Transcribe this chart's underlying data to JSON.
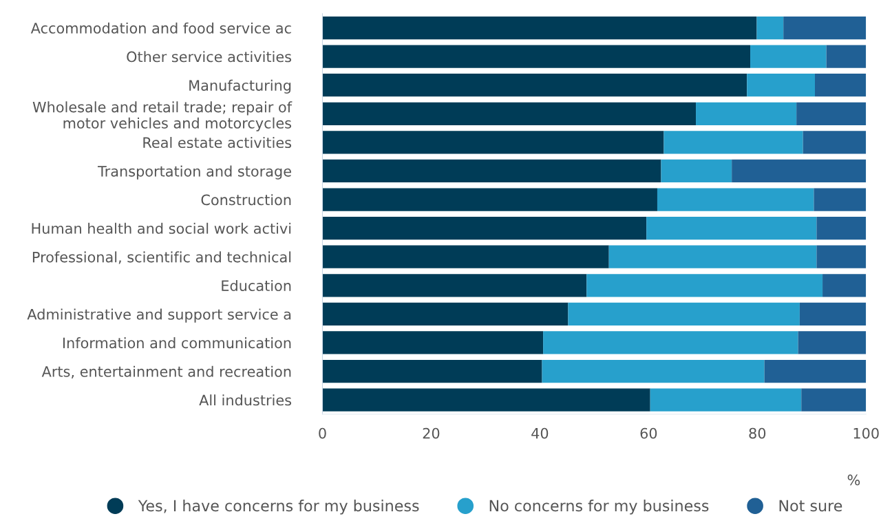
{
  "chart_data": {
    "type": "bar",
    "orientation": "horizontal",
    "stacked": true,
    "categories": [
      "Accommodation and food service ac",
      "Other service activities",
      "Manufacturing",
      "Wholesale and retail trade; repair of\nmotor vehicles and motorcycles",
      "Real estate activities",
      "Transportation and storage",
      "Construction",
      "Human health and social work activi",
      "Professional, scientific and technical",
      "Education",
      "Administrative and support service a",
      "Information and communication",
      "Arts, entertainment and recreation",
      "All industries"
    ],
    "series": [
      {
        "name": "Yes, I have concerns for my business",
        "color": "#003c57",
        "values": [
          79.9,
          78.7,
          78.1,
          68.7,
          62.8,
          62.3,
          61.6,
          59.6,
          52.7,
          48.6,
          45.2,
          40.6,
          40.4,
          60.3
        ]
      },
      {
        "name": "No concerns for my business",
        "color": "#27a0cc",
        "values": [
          4.9,
          14.0,
          12.5,
          18.5,
          25.6,
          13.0,
          28.8,
          31.3,
          38.2,
          43.4,
          42.6,
          46.9,
          40.9,
          27.8
        ]
      },
      {
        "name": "Not sure",
        "color": "#206095",
        "values": [
          15.2,
          7.3,
          9.4,
          12.8,
          11.6,
          24.7,
          9.6,
          9.1,
          9.1,
          8.0,
          12.2,
          12.5,
          18.7,
          11.9
        ]
      }
    ],
    "xlabel": "%",
    "xlim": [
      0,
      100
    ],
    "xticks": [
      0,
      20,
      40,
      60,
      80,
      100
    ],
    "grid": false,
    "legend": "bottom",
    "marker": "circle"
  }
}
